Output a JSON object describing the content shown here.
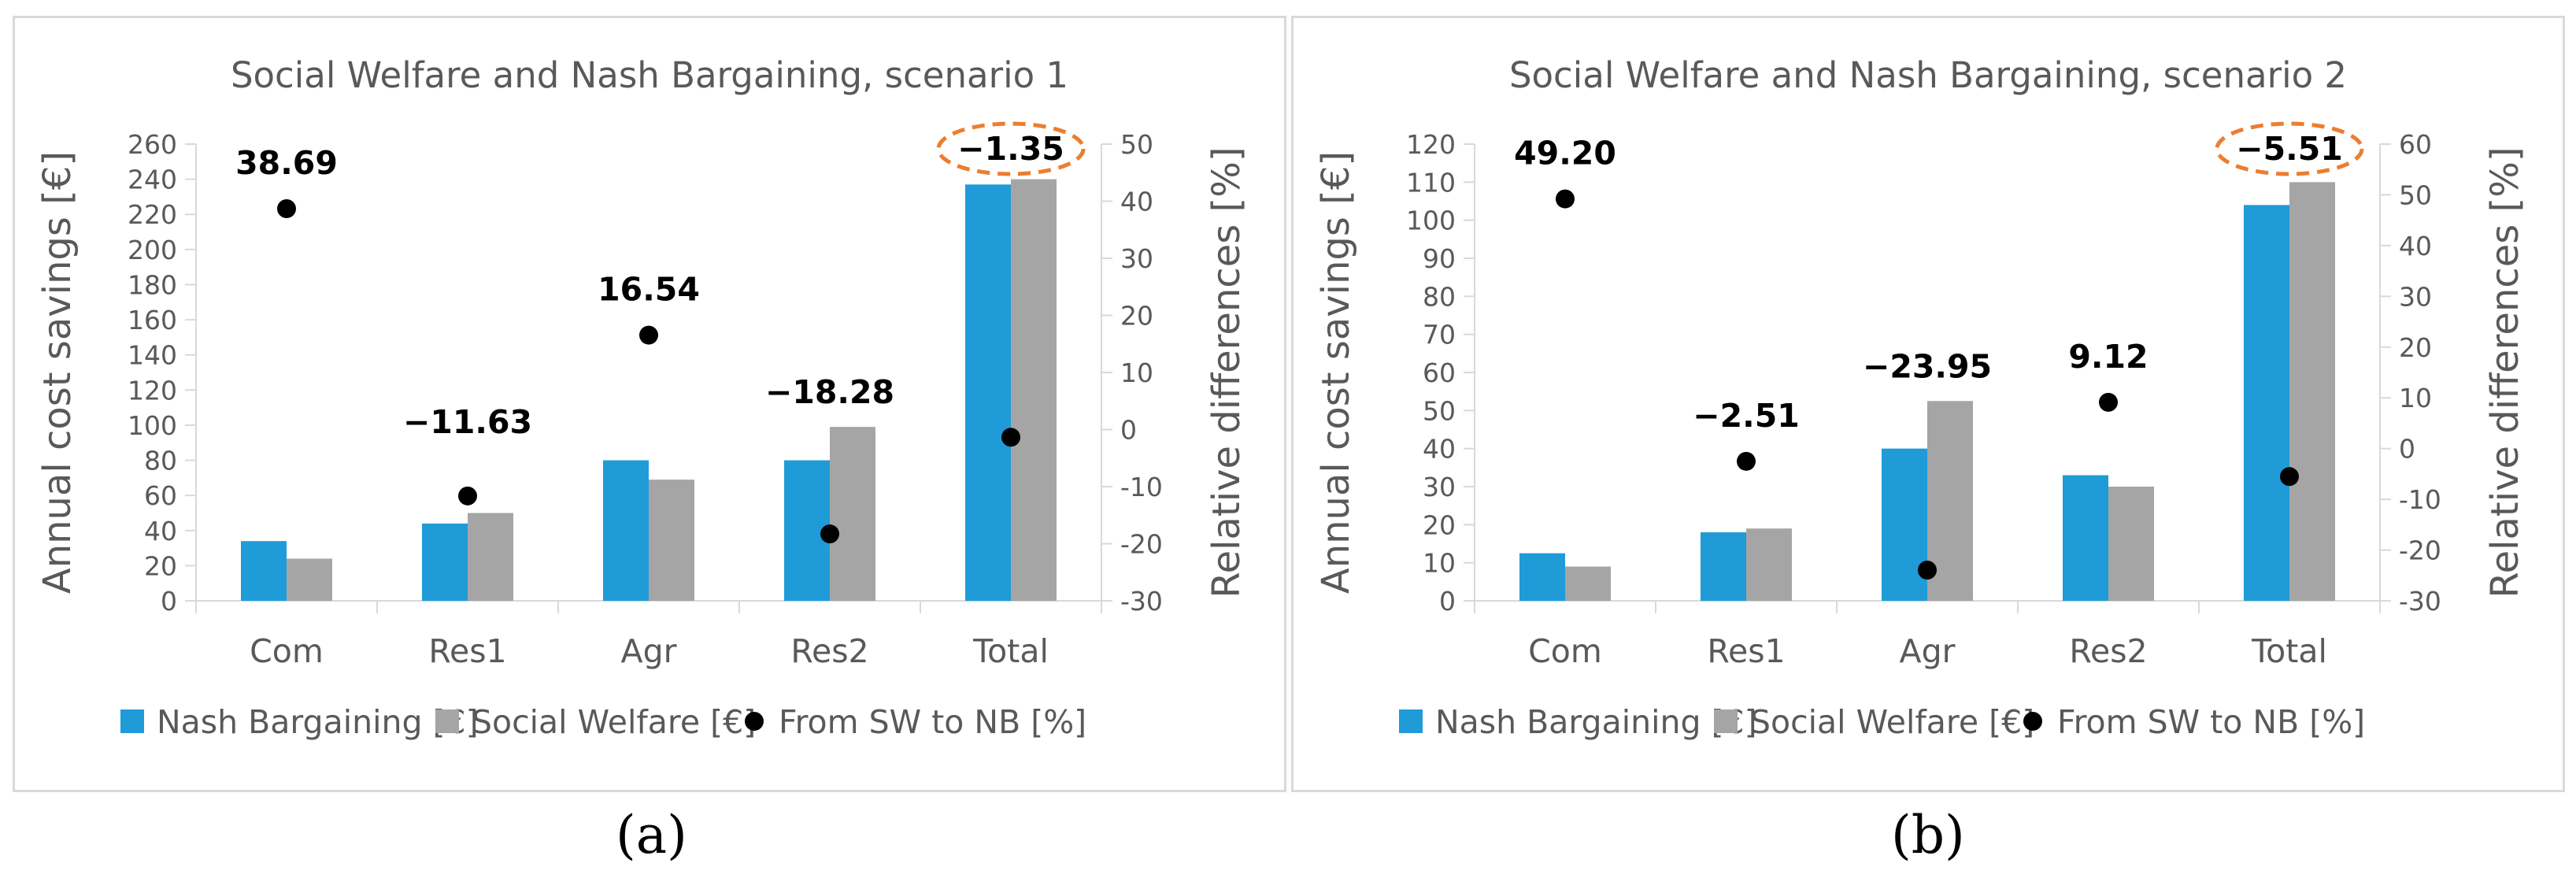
{
  "colors": {
    "nb": "#1f9bd7",
    "sw": "#a5a5a5",
    "dot": "#000000",
    "grid": "#d9d9d9",
    "highlight": "#ed7d31"
  },
  "captions": [
    "(a)",
    "(b)"
  ],
  "chart_data": [
    {
      "type": "bar",
      "title": "Social Welfare and Nash Bargaining, scenario 1",
      "categories": [
        "Com",
        "Res1",
        "Agr",
        "Res2",
        "Total"
      ],
      "ylabel": "Annual cost savings [€]",
      "y2label": "Relative differences [%]",
      "ylim": [
        0,
        260
      ],
      "ystep": 20,
      "y2lim": [
        -30,
        50
      ],
      "y2step": 10,
      "series": [
        {
          "name": "Nash Bargaining [€]",
          "kind": "bar",
          "values": [
            34,
            44,
            80,
            80,
            237
          ]
        },
        {
          "name": "Social Welfare [€]",
          "kind": "bar",
          "values": [
            24,
            50,
            69,
            99,
            240
          ]
        },
        {
          "name": "From SW to NB [%]",
          "kind": "scatter",
          "axis": "secondary",
          "values": [
            38.69,
            -11.63,
            16.54,
            -18.28,
            -1.35
          ]
        }
      ],
      "data_labels": [
        "38.69",
        "−11.63",
        "16.54",
        "−18.28",
        "−1.35"
      ],
      "highlighted_label": "−1.35",
      "legend": [
        "Nash Bargaining [€]",
        "Social Welfare [€]",
        "From SW to NB [%]"
      ],
      "legend_position": "bottom"
    },
    {
      "type": "bar",
      "title": "Social Welfare and Nash Bargaining, scenario 2",
      "categories": [
        "Com",
        "Res1",
        "Agr",
        "Res2",
        "Total"
      ],
      "ylabel": "Annual cost savings [€]",
      "y2label": "Relative differences [%]",
      "ylim": [
        0,
        120
      ],
      "ystep": 10,
      "y2lim": [
        -30,
        60
      ],
      "y2step": 10,
      "series": [
        {
          "name": "Nash Bargaining [€]",
          "kind": "bar",
          "values": [
            12.5,
            18,
            40,
            33,
            104
          ]
        },
        {
          "name": "Social Welfare [€]",
          "kind": "bar",
          "values": [
            9,
            19,
            52.5,
            30,
            110
          ]
        },
        {
          "name": "From SW to NB [%]",
          "kind": "scatter",
          "axis": "secondary",
          "values": [
            49.2,
            -2.51,
            -23.95,
            9.12,
            -5.51
          ]
        }
      ],
      "data_labels": [
        "49.20",
        "−2.51",
        "−23.95",
        "9.12",
        "−5.51"
      ],
      "highlighted_label": "−5.51",
      "legend": [
        "Nash Bargaining [€]",
        "Social Welfare [€]",
        "From SW to NB [%]"
      ],
      "legend_position": "bottom"
    }
  ]
}
